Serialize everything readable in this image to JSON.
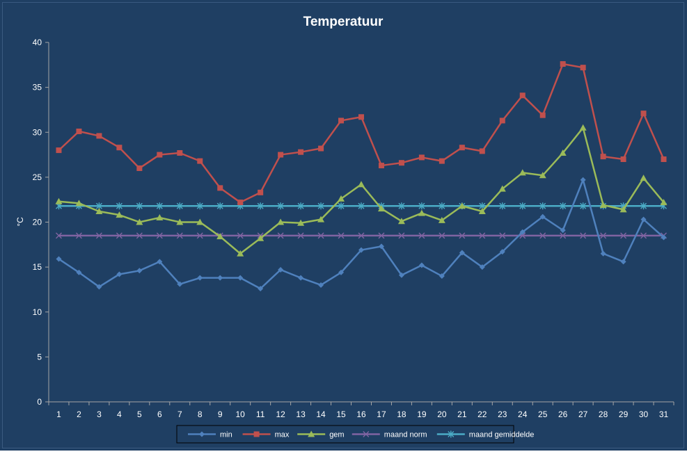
{
  "colors": {
    "background": "#1F3F63",
    "axis": "#A6A6A6",
    "text": "#FFFFFF",
    "legend_bg": "#1F3F63",
    "legend_border": "#000000"
  },
  "chart_data": {
    "type": "line",
    "title": "Temperatuur",
    "xlabel": "",
    "ylabel": "°C",
    "ylim": [
      0,
      40
    ],
    "yticks": [
      0,
      5,
      10,
      15,
      20,
      25,
      30,
      35,
      40
    ],
    "grid": false,
    "legend_position": "bottom",
    "categories": [
      "1",
      "2",
      "3",
      "4",
      "5",
      "6",
      "7",
      "8",
      "9",
      "10",
      "11",
      "12",
      "13",
      "14",
      "15",
      "16",
      "17",
      "18",
      "19",
      "20",
      "21",
      "22",
      "23",
      "24",
      "25",
      "26",
      "27",
      "28",
      "29",
      "30",
      "31"
    ],
    "series": [
      {
        "name": "min",
        "color": "#4F81BD",
        "marker": "diamond",
        "values": [
          15.9,
          14.4,
          12.8,
          14.2,
          14.6,
          15.6,
          13.1,
          13.8,
          13.8,
          13.8,
          12.6,
          14.7,
          13.8,
          13.0,
          14.4,
          16.9,
          17.3,
          14.1,
          15.2,
          14.0,
          16.6,
          15.0,
          16.7,
          18.9,
          20.6,
          19.1,
          24.7,
          16.5,
          15.6,
          20.3,
          18.3
        ]
      },
      {
        "name": "max",
        "color": "#C0504D",
        "marker": "square",
        "values": [
          28.0,
          30.1,
          29.6,
          28.3,
          26.0,
          27.5,
          27.7,
          26.8,
          23.8,
          22.2,
          23.3,
          27.5,
          27.8,
          28.2,
          31.3,
          31.7,
          26.3,
          26.6,
          27.2,
          26.8,
          28.3,
          27.9,
          31.3,
          34.1,
          31.9,
          37.6,
          37.2,
          27.3,
          27.0,
          32.1,
          27.0
        ]
      },
      {
        "name": "gem",
        "color": "#9BBB59",
        "marker": "triangle",
        "values": [
          22.3,
          22.1,
          21.2,
          20.8,
          20.0,
          20.5,
          20.0,
          20.0,
          18.4,
          16.5,
          18.2,
          20.0,
          19.9,
          20.3,
          22.6,
          24.2,
          21.5,
          20.1,
          21.0,
          20.2,
          21.8,
          21.2,
          23.7,
          25.5,
          25.2,
          27.7,
          30.5,
          21.9,
          21.4,
          24.9,
          22.2
        ]
      },
      {
        "name": "maand norm",
        "color": "#8064A2",
        "marker": "x",
        "values": [
          18.5,
          18.5,
          18.5,
          18.5,
          18.5,
          18.5,
          18.5,
          18.5,
          18.5,
          18.5,
          18.5,
          18.5,
          18.5,
          18.5,
          18.5,
          18.5,
          18.5,
          18.5,
          18.5,
          18.5,
          18.5,
          18.5,
          18.5,
          18.5,
          18.5,
          18.5,
          18.5,
          18.5,
          18.5,
          18.5,
          18.5
        ]
      },
      {
        "name": "maand gemiddelde",
        "color": "#4BACC6",
        "marker": "star",
        "values": [
          21.8,
          21.8,
          21.8,
          21.8,
          21.8,
          21.8,
          21.8,
          21.8,
          21.8,
          21.8,
          21.8,
          21.8,
          21.8,
          21.8,
          21.8,
          21.8,
          21.8,
          21.8,
          21.8,
          21.8,
          21.8,
          21.8,
          21.8,
          21.8,
          21.8,
          21.8,
          21.8,
          21.8,
          21.8,
          21.8,
          21.8
        ]
      }
    ]
  }
}
